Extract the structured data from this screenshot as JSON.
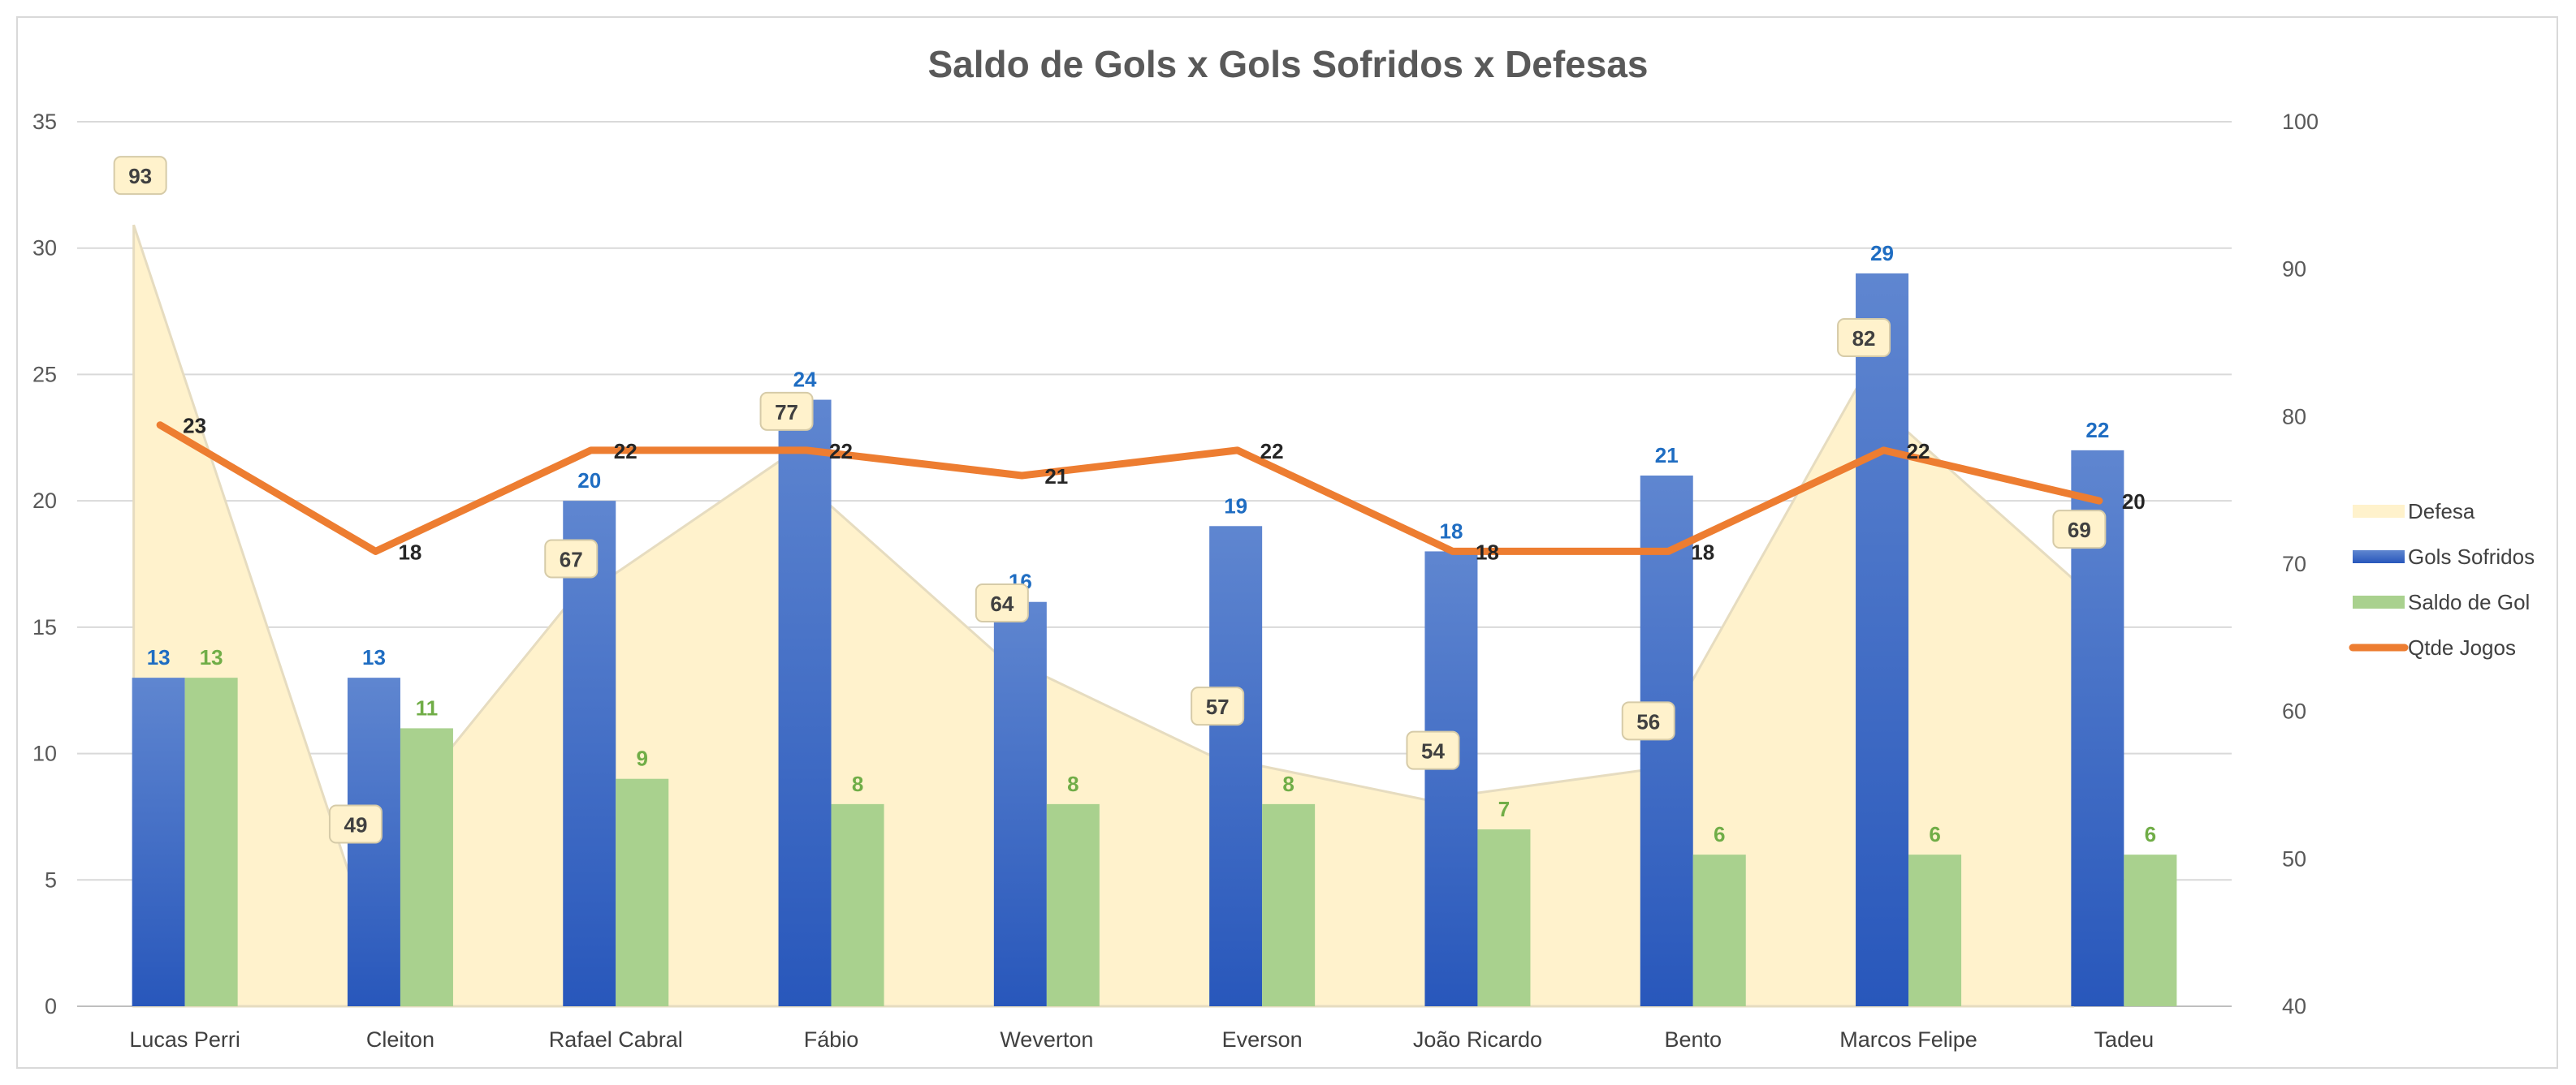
{
  "chart_data": {
    "type": "combo",
    "title": "Saldo de Gols x Gols Sofridos x Defesas",
    "categories": [
      "Lucas Perri",
      "Cleiton",
      "Rafael Cabral",
      "Fábio",
      "Weverton",
      "Everson",
      "João Ricardo",
      "Bento",
      "Marcos Felipe",
      "Tadeu"
    ],
    "series": [
      {
        "name": "Defesa",
        "type": "area",
        "axis": "secondary",
        "color": "#fff2cc",
        "values": [
          93,
          49,
          67,
          77,
          64,
          57,
          54,
          56,
          82,
          69
        ]
      },
      {
        "name": "Gols Sofridos",
        "type": "bar",
        "axis": "primary",
        "color": "#2e5fbf",
        "values": [
          13,
          13,
          20,
          24,
          16,
          19,
          18,
          21,
          29,
          22
        ]
      },
      {
        "name": "Saldo de Gol",
        "type": "bar",
        "axis": "primary",
        "color": "#a9d18e",
        "values": [
          13,
          11,
          9,
          8,
          8,
          8,
          7,
          6,
          6,
          6
        ]
      },
      {
        "name": "Qtde Jogos",
        "type": "line",
        "axis": "primary",
        "color": "#ed7d31",
        "values": [
          23,
          18,
          22,
          22,
          21,
          22,
          18,
          18,
          22,
          20
        ]
      }
    ],
    "primary_axis": {
      "min": 0,
      "max": 35,
      "ticks": [
        0,
        5,
        10,
        15,
        20,
        25,
        30,
        35
      ]
    },
    "secondary_axis": {
      "min": 40,
      "max": 100,
      "ticks": [
        40,
        50,
        60,
        70,
        80,
        90,
        100
      ]
    },
    "grid": true,
    "legend_position": "right"
  }
}
